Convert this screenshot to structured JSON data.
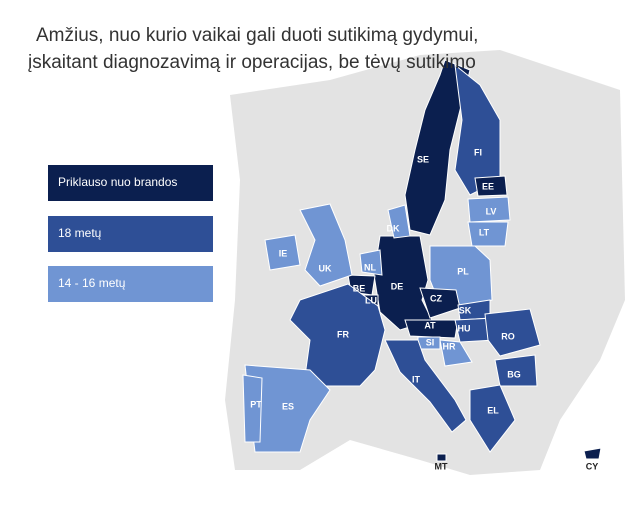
{
  "title": [
    "Amžius, nuo kurio vaikai gali duoti sutikimą gydymui,",
    "įskaitant diagnozavimą ir operacijas, be tėvų sutikimo"
  ],
  "legend": [
    {
      "label": "Priklauso nuo brandos",
      "color": "#0b1f4f",
      "countries": [
        "SE",
        "EE",
        "DE",
        "BE",
        "LU",
        "CZ",
        "AT",
        "MT",
        "CY"
      ]
    },
    {
      "label": "18 metų",
      "color": "#2e4f96",
      "countries": [
        "FI",
        "FR",
        "IT",
        "SK",
        "HU",
        "RO",
        "BG",
        "EL"
      ]
    },
    {
      "label": "14 - 16 metų",
      "color": "#7095d3",
      "countries": [
        "UK",
        "IE",
        "ES",
        "PT",
        "PL",
        "LV",
        "LT",
        "DK",
        "NL",
        "HR",
        "SI"
      ]
    }
  ],
  "countries": [
    {
      "code": "SE"
    },
    {
      "code": "FI"
    },
    {
      "code": "EE"
    },
    {
      "code": "LV"
    },
    {
      "code": "LT"
    },
    {
      "code": "PL"
    },
    {
      "code": "DE"
    },
    {
      "code": "DK"
    },
    {
      "code": "NL"
    },
    {
      "code": "BE"
    },
    {
      "code": "LU"
    },
    {
      "code": "FR"
    },
    {
      "code": "CZ"
    },
    {
      "code": "SK"
    },
    {
      "code": "AT"
    },
    {
      "code": "HU"
    },
    {
      "code": "SI"
    },
    {
      "code": "HR"
    },
    {
      "code": "RO"
    },
    {
      "code": "BG"
    },
    {
      "code": "EL"
    },
    {
      "code": "IT"
    },
    {
      "code": "ES"
    },
    {
      "code": "PT"
    },
    {
      "code": "UK"
    },
    {
      "code": "IE"
    },
    {
      "code": "MT"
    },
    {
      "code": "CY"
    }
  ]
}
